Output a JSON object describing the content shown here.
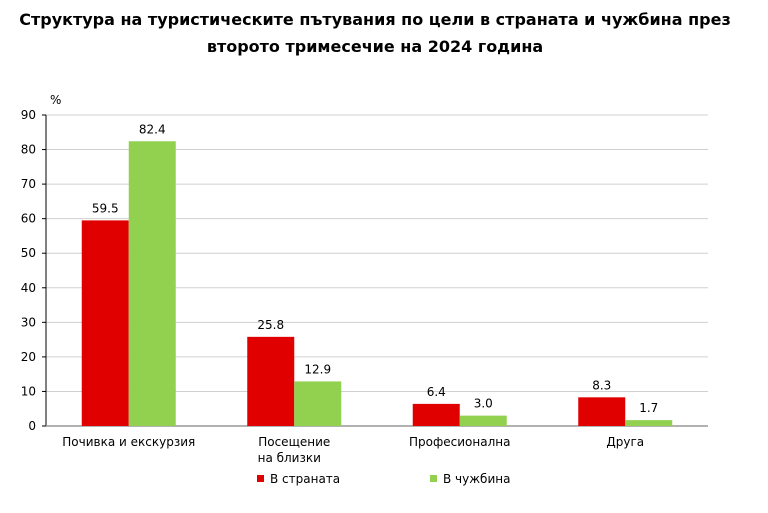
{
  "chart_data": {
    "type": "bar",
    "title_lines": [
      "Структура на туристическите пътувания по цели в страната и чужбина през",
      "второто тримесечие на 2024 година"
    ],
    "ylabel": "%",
    "ylim": [
      0,
      90
    ],
    "yticks": [
      0,
      10,
      20,
      30,
      40,
      50,
      60,
      70,
      80,
      90
    ],
    "grid": true,
    "categories": [
      [
        "Почивка и екскурзия"
      ],
      [
        "Посещение",
        "на близки"
      ],
      [
        "Професионална"
      ],
      [
        "Друга"
      ]
    ],
    "series": [
      {
        "name": "В страната",
        "color": "#E00000",
        "values": [
          59.5,
          25.8,
          6.4,
          8.3
        ],
        "labels": [
          "59.5",
          "25.8",
          "6.4",
          "8.3"
        ]
      },
      {
        "name": "В чужбина",
        "color": "#92D050",
        "values": [
          82.4,
          12.9,
          3.0,
          1.7
        ],
        "labels": [
          "82.4",
          "12.9",
          "3.0",
          "1.7"
        ]
      }
    ],
    "legend_position": "bottom"
  }
}
